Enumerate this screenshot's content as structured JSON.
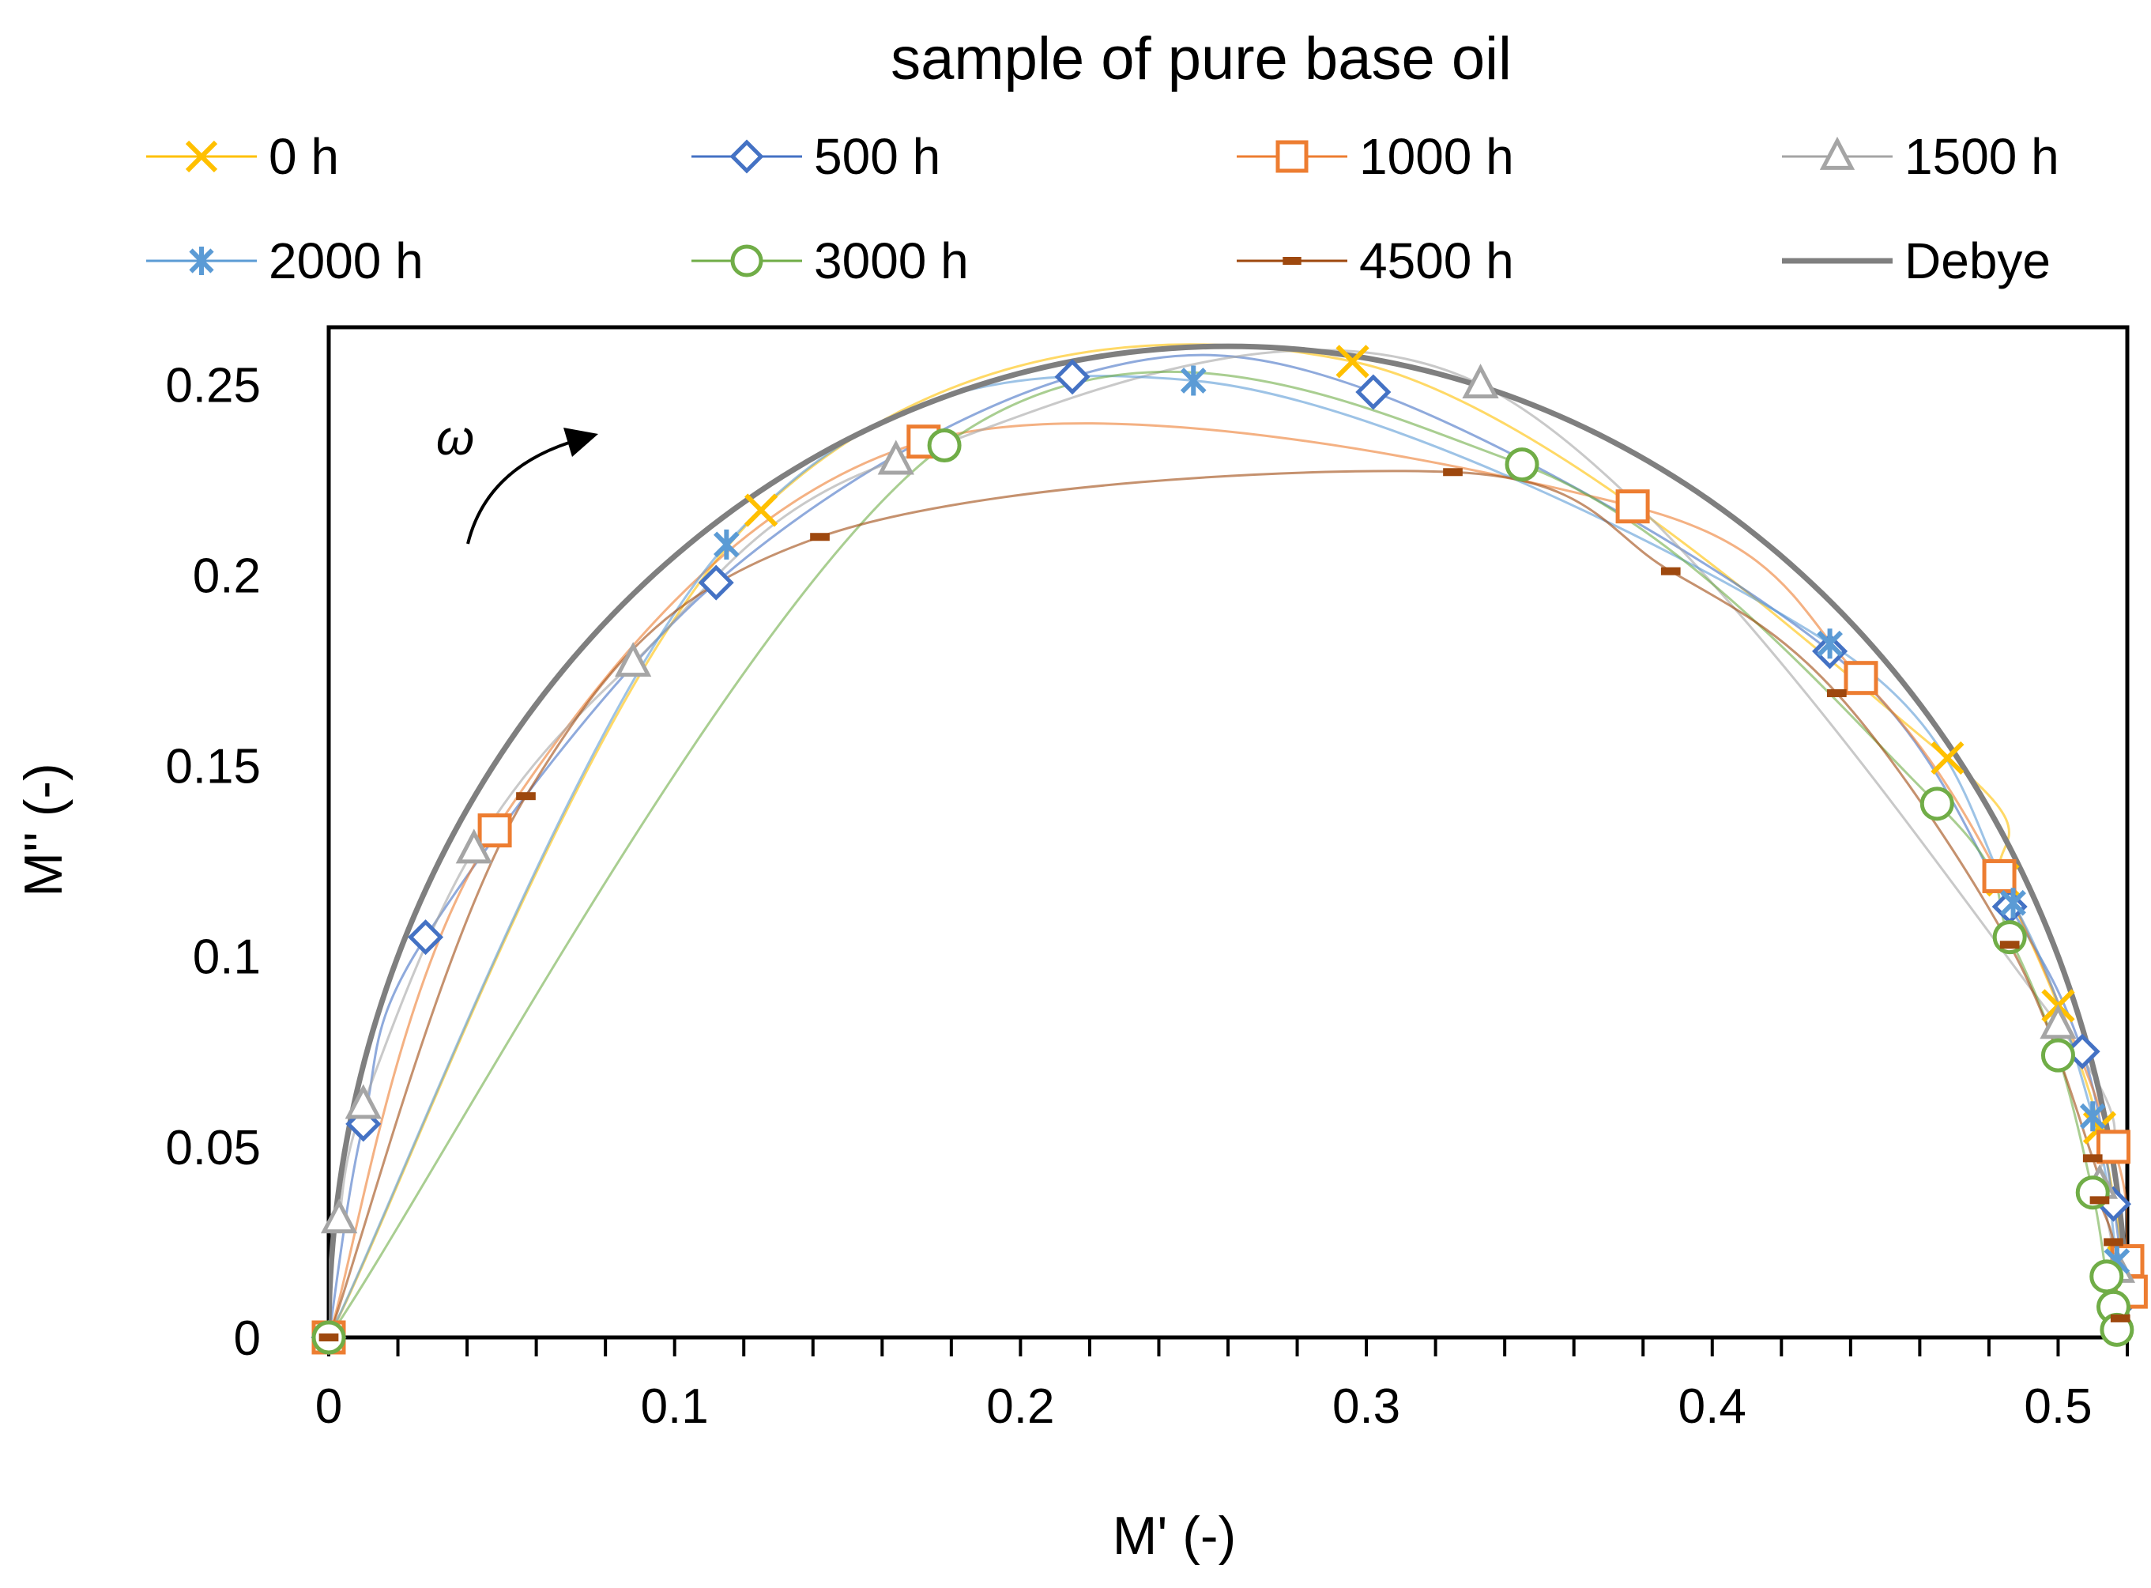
{
  "chart_data": {
    "type": "scatter",
    "title": "sample of pure base oil",
    "xlabel": "M' (-)",
    "ylabel": "M'' (-)",
    "xlim": [
      0,
      0.52
    ],
    "ylim": [
      0,
      0.265
    ],
    "xticks": [
      0,
      0.1,
      0.2,
      0.3,
      0.4,
      0.5
    ],
    "yticks": [
      0,
      0.05,
      0.1,
      0.15,
      0.2,
      0.25
    ],
    "xtick_labels": [
      "0",
      "0.1",
      "0.2",
      "0.3",
      "0.4",
      "0.5"
    ],
    "ytick_labels": [
      "0",
      "0.05",
      "0.1",
      "0.15",
      "0.2",
      "0.25"
    ],
    "annotation": "ω",
    "legend_position": "top",
    "series": [
      {
        "name": "0 h",
        "marker": "x",
        "color": "#FFC000",
        "x": [
          0.0,
          0.125,
          0.296,
          0.468,
          0.484,
          0.5,
          0.512,
          0.519
        ],
        "y": [
          0.0,
          0.217,
          0.256,
          0.152,
          0.12,
          0.087,
          0.055,
          0.02
        ]
      },
      {
        "name": "500 h",
        "marker": "diamond",
        "color": "#4472C4",
        "x": [
          0.0,
          0.01,
          0.028,
          0.112,
          0.215,
          0.302,
          0.434,
          0.486,
          0.507,
          0.516,
          0.519
        ],
        "y": [
          0.0,
          0.056,
          0.105,
          0.198,
          0.252,
          0.248,
          0.18,
          0.113,
          0.075,
          0.035,
          0.01
        ]
      },
      {
        "name": "1000 h",
        "marker": "square",
        "color": "#ED7D31",
        "x": [
          0.0,
          0.048,
          0.172,
          0.377,
          0.443,
          0.483,
          0.516,
          0.52,
          0.521
        ],
        "y": [
          0.0,
          0.133,
          0.235,
          0.218,
          0.173,
          0.121,
          0.05,
          0.02,
          0.012
        ]
      },
      {
        "name": "1500 h",
        "marker": "triangle",
        "color": "#A5A5A5",
        "x": [
          0.003,
          0.01,
          0.042,
          0.088,
          0.164,
          0.333,
          0.5,
          0.512,
          0.517
        ],
        "y": [
          0.031,
          0.061,
          0.128,
          0.177,
          0.23,
          0.25,
          0.082,
          0.04,
          0.018
        ]
      },
      {
        "name": "2000 h",
        "marker": "asterisk",
        "color": "#5B9BD5",
        "x": [
          0.0,
          0.115,
          0.25,
          0.434,
          0.487,
          0.51,
          0.517
        ],
        "y": [
          0.0,
          0.208,
          0.251,
          0.182,
          0.114,
          0.058,
          0.02
        ]
      },
      {
        "name": "3000 h",
        "marker": "circle",
        "color": "#70AD47",
        "x": [
          0.0,
          0.178,
          0.345,
          0.465,
          0.486,
          0.5,
          0.51,
          0.514,
          0.516,
          0.517
        ],
        "y": [
          0.0,
          0.234,
          0.229,
          0.14,
          0.105,
          0.074,
          0.038,
          0.016,
          0.008,
          0.002
        ]
      },
      {
        "name": "4500 h",
        "marker": "dash",
        "color": "#9E480E",
        "x": [
          0.0,
          0.057,
          0.142,
          0.325,
          0.388,
          0.436,
          0.486,
          0.51,
          0.512,
          0.516,
          0.518
        ],
        "y": [
          0.0,
          0.142,
          0.21,
          0.227,
          0.201,
          0.169,
          0.103,
          0.047,
          0.036,
          0.025,
          0.005
        ]
      },
      {
        "name": "Debye",
        "marker": "none",
        "color": "#7F7F7F",
        "center": 0.26,
        "radius": 0.26
      }
    ]
  }
}
